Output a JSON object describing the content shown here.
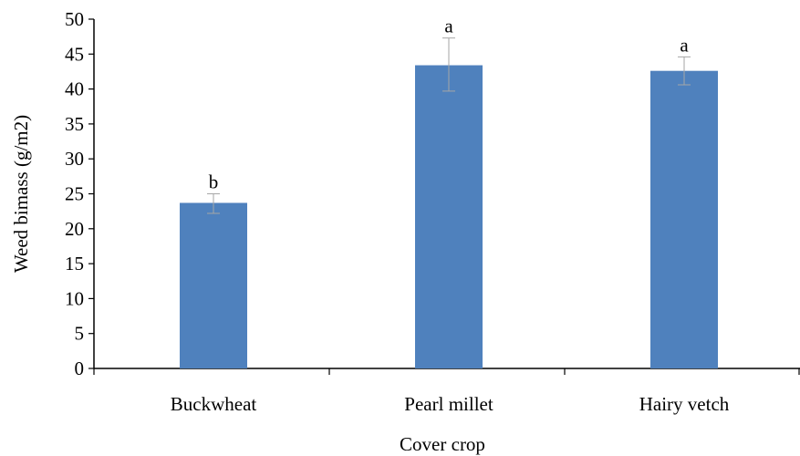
{
  "chart_data": {
    "type": "bar",
    "title": "",
    "xlabel": "Cover crop",
    "ylabel": "Weed bimass (g/m2)",
    "categories": [
      "Buckwheat",
      "Pearl millet",
      "Hairy vetch"
    ],
    "values": [
      23.7,
      43.4,
      42.6
    ],
    "error_low": [
      22.2,
      39.7,
      40.6
    ],
    "error_high": [
      25.0,
      47.3,
      44.6
    ],
    "significance_letters": [
      "b",
      "a",
      "a"
    ],
    "ylim": [
      0,
      50
    ],
    "yticks": [
      0,
      5,
      10,
      15,
      20,
      25,
      30,
      35,
      40,
      45,
      50
    ],
    "grid": false,
    "legend": "none",
    "colors": {
      "bar": "#4f81bd",
      "error_bar": "#a6a6a6",
      "axis": "#000000"
    }
  }
}
